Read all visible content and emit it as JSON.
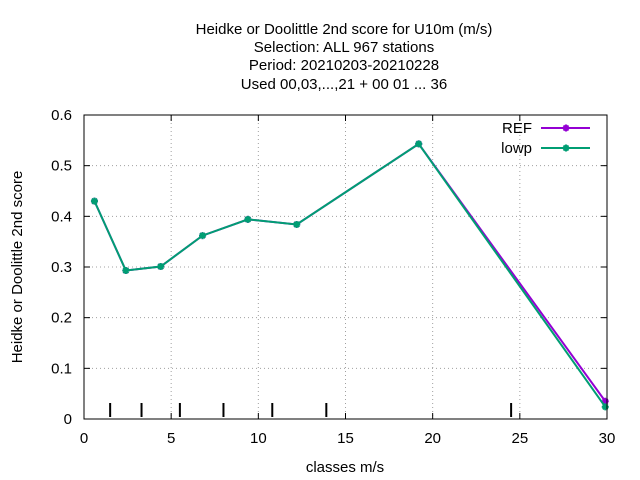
{
  "chart_data": {
    "type": "line",
    "title_lines": [
      "Heidke or Doolittle 2nd score  for U10m (m/s)",
      "Selection: ALL    967 stations",
      "Period: 20210203-20210228",
      "Used  00,03,...,21  + 00 01 ... 36"
    ],
    "xlabel": "classes m/s",
    "ylabel": "Heidke or Doolittle 2nd score",
    "xlim": [
      0,
      30
    ],
    "ylim": [
      0,
      0.6
    ],
    "xticks": [
      "0",
      "5",
      "10",
      "15",
      "20",
      "25",
      "30"
    ],
    "yticks": [
      "0",
      "0.1",
      "0.2",
      "0.3",
      "0.4",
      "0.5",
      "0.6"
    ],
    "grid": true,
    "legend_position": "top-right",
    "class_markers_x": [
      1.5,
      3.3,
      5.5,
      8.0,
      10.8,
      13.9,
      24.5
    ],
    "series": [
      {
        "name": "REF",
        "color": "#9400d3",
        "x": [
          0.6,
          2.4,
          4.4,
          6.8,
          9.4,
          12.2,
          19.2,
          29.9
        ],
        "y": [
          0.43,
          0.293,
          0.301,
          0.362,
          0.394,
          0.384,
          0.543,
          0.035
        ]
      },
      {
        "name": "lowp",
        "color": "#009e73",
        "x": [
          0.6,
          2.4,
          4.4,
          6.8,
          9.4,
          12.2,
          19.2,
          29.9
        ],
        "y": [
          0.43,
          0.293,
          0.301,
          0.362,
          0.394,
          0.384,
          0.543,
          0.024
        ]
      }
    ]
  }
}
